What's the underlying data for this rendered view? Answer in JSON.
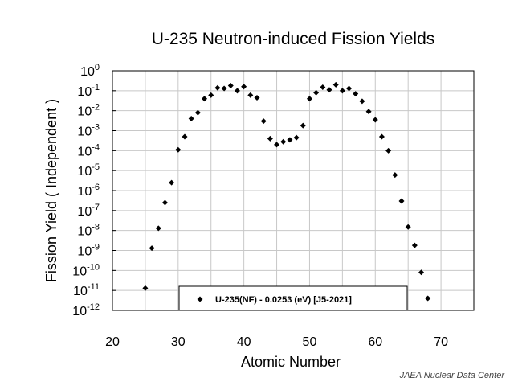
{
  "chart_data": {
    "type": "scatter",
    "title": "U-235  Neutron-induced Fission Yields",
    "xlabel": "Atomic Number",
    "ylabel": "Fission Yield  ( Independent )",
    "xlim": [
      20,
      75
    ],
    "ylim": [
      1e-12,
      1
    ],
    "x_scale": "linear",
    "y_scale": "log",
    "grid": true,
    "legend_position": "bottom-center",
    "x_ticks": [
      "20",
      "30",
      "40",
      "50",
      "60",
      "70"
    ],
    "x_tick_values": [
      20,
      30,
      40,
      50,
      60,
      70
    ],
    "y_ticks": [
      {
        "base": "10",
        "exp": "0",
        "value": 1
      },
      {
        "base": "10",
        "exp": "-1",
        "value": 0.1
      },
      {
        "base": "10",
        "exp": "-2",
        "value": 0.01
      },
      {
        "base": "10",
        "exp": "-3",
        "value": 0.001
      },
      {
        "base": "10",
        "exp": "-4",
        "value": 0.0001
      },
      {
        "base": "10",
        "exp": "-5",
        "value": 1e-05
      },
      {
        "base": "10",
        "exp": "-6",
        "value": 1e-06
      },
      {
        "base": "10",
        "exp": "-7",
        "value": 1e-07
      },
      {
        "base": "10",
        "exp": "-8",
        "value": 1e-08
      },
      {
        "base": "10",
        "exp": "-9",
        "value": 1e-09
      },
      {
        "base": "10",
        "exp": "-10",
        "value": 1e-10
      },
      {
        "base": "10",
        "exp": "-11",
        "value": 1e-11
      },
      {
        "base": "10",
        "exp": "-12",
        "value": 1e-12
      }
    ],
    "series": [
      {
        "name": "U-235(NF) - 0.0253 (eV)  [J5-2021]",
        "marker": "diamond",
        "color": "#000000",
        "x": [
          25,
          26,
          27,
          28,
          29,
          30,
          31,
          32,
          33,
          34,
          35,
          36,
          37,
          38,
          39,
          40,
          41,
          42,
          43,
          44,
          45,
          46,
          47,
          48,
          49,
          50,
          51,
          52,
          53,
          54,
          55,
          56,
          57,
          58,
          59,
          60,
          61,
          62,
          63,
          64,
          65,
          66,
          67,
          68
        ],
        "y": [
          1.3e-11,
          1.3e-09,
          1.3e-08,
          2.5e-07,
          2.5e-06,
          0.00011,
          0.0005,
          0.004,
          0.008,
          0.04,
          0.06,
          0.14,
          0.13,
          0.18,
          0.1,
          0.16,
          0.06,
          0.045,
          0.003,
          0.0004,
          0.0002,
          0.00028,
          0.00035,
          0.00045,
          0.0018,
          0.04,
          0.08,
          0.15,
          0.11,
          0.2,
          0.1,
          0.13,
          0.07,
          0.03,
          0.009,
          0.0035,
          0.0005,
          0.0001,
          6e-06,
          3e-07,
          1.5e-08,
          1.8e-09,
          8e-11,
          4e-12
        ]
      }
    ]
  },
  "credit": "JAEA Nuclear Data Center"
}
